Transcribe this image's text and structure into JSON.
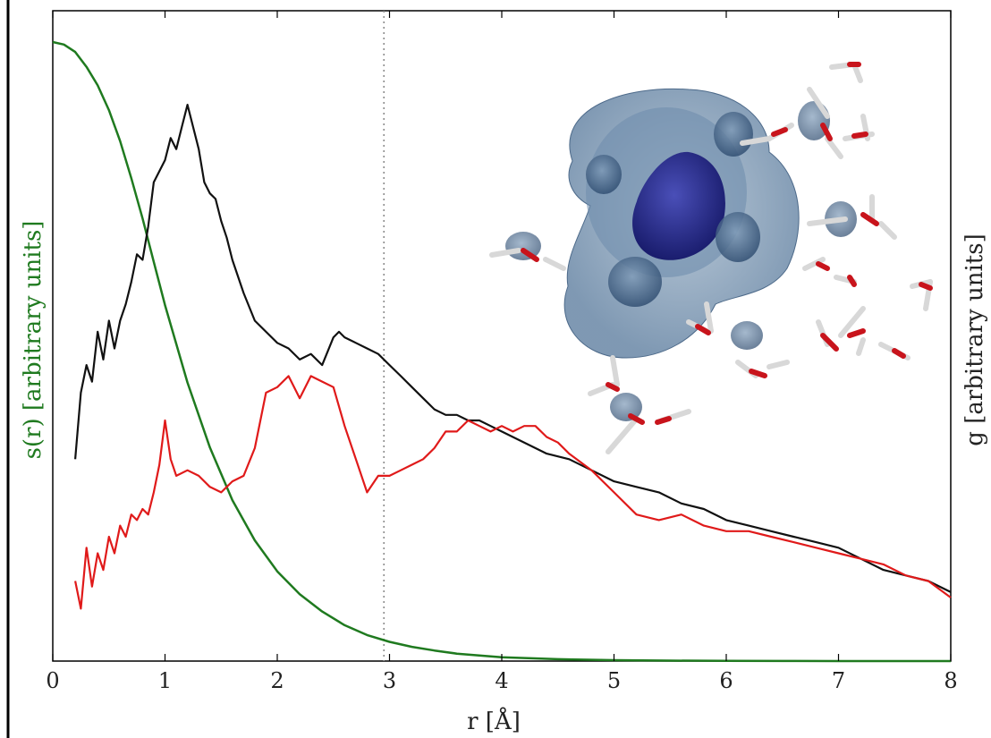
{
  "chart_data": {
    "type": "line",
    "xlabel": "r [Å]",
    "ylabel_left": "s(r) [arbitrary units]",
    "ylabel_right": "g [arbitrary units]",
    "xlim": [
      0,
      8
    ],
    "x_ticks": [
      "0",
      "1",
      "2",
      "3",
      "4",
      "5",
      "6",
      "7",
      "8"
    ],
    "grid": false,
    "vline_x": 2.95,
    "inset": "molecular snapshot of solvated ion surrounded by water molecules with blue isosurfaces",
    "series": [
      {
        "axis": "left",
        "color": "#1f7a1f",
        "x": [
          0,
          0.1,
          0.2,
          0.3,
          0.4,
          0.5,
          0.6,
          0.7,
          0.8,
          0.9,
          1.0,
          1.2,
          1.4,
          1.6,
          1.8,
          2.0,
          2.2,
          2.4,
          2.6,
          2.8,
          3.0,
          3.2,
          3.4,
          3.6,
          3.8,
          4.0,
          4.5,
          5.0,
          5.5,
          6.0,
          6.5,
          7.0,
          7.5,
          8.0
        ],
        "values": [
          1.0,
          0.996,
          0.984,
          0.96,
          0.93,
          0.89,
          0.84,
          0.78,
          0.715,
          0.645,
          0.575,
          0.45,
          0.345,
          0.26,
          0.195,
          0.145,
          0.108,
          0.08,
          0.058,
          0.042,
          0.031,
          0.023,
          0.017,
          0.012,
          0.009,
          0.006,
          0.003,
          0.0015,
          0.0007,
          0.0003,
          0.0001,
          0.0,
          0.0,
          0.0
        ]
      },
      {
        "axis": "right",
        "color": "#111111",
        "x": [
          0.2,
          0.25,
          0.3,
          0.35,
          0.4,
          0.45,
          0.5,
          0.55,
          0.6,
          0.65,
          0.7,
          0.75,
          0.8,
          0.85,
          0.9,
          0.95,
          1.0,
          1.05,
          1.1,
          1.15,
          1.2,
          1.25,
          1.3,
          1.35,
          1.4,
          1.45,
          1.5,
          1.55,
          1.6,
          1.7,
          1.8,
          1.9,
          2.0,
          2.1,
          2.2,
          2.3,
          2.4,
          2.5,
          2.55,
          2.6,
          2.7,
          2.8,
          2.9,
          3.0,
          3.1,
          3.2,
          3.3,
          3.4,
          3.5,
          3.6,
          3.7,
          3.8,
          3.9,
          4.0,
          4.2,
          4.4,
          4.6,
          4.8,
          5.0,
          5.2,
          5.4,
          5.6,
          5.8,
          6.0,
          6.2,
          6.4,
          6.6,
          6.8,
          7.0,
          7.2,
          7.4,
          7.6,
          7.8,
          8.0
        ],
        "values": [
          0.3,
          0.42,
          0.47,
          0.44,
          0.53,
          0.48,
          0.55,
          0.5,
          0.55,
          0.58,
          0.62,
          0.67,
          0.66,
          0.72,
          0.8,
          0.82,
          0.84,
          0.88,
          0.86,
          0.9,
          0.94,
          0.9,
          0.86,
          0.8,
          0.78,
          0.77,
          0.73,
          0.7,
          0.66,
          0.6,
          0.55,
          0.53,
          0.51,
          0.5,
          0.48,
          0.49,
          0.47,
          0.52,
          0.53,
          0.52,
          0.51,
          0.5,
          0.49,
          0.47,
          0.45,
          0.43,
          0.41,
          0.39,
          0.38,
          0.38,
          0.37,
          0.37,
          0.36,
          0.35,
          0.33,
          0.31,
          0.3,
          0.28,
          0.26,
          0.25,
          0.24,
          0.22,
          0.21,
          0.19,
          0.18,
          0.17,
          0.16,
          0.15,
          0.14,
          0.12,
          0.1,
          0.09,
          0.08,
          0.06
        ]
      },
      {
        "axis": "right",
        "color": "#e01a1a",
        "x": [
          0.2,
          0.25,
          0.3,
          0.35,
          0.4,
          0.45,
          0.5,
          0.55,
          0.6,
          0.65,
          0.7,
          0.75,
          0.8,
          0.85,
          0.9,
          0.95,
          1.0,
          1.05,
          1.1,
          1.2,
          1.3,
          1.4,
          1.5,
          1.6,
          1.7,
          1.8,
          1.9,
          2.0,
          2.1,
          2.2,
          2.3,
          2.4,
          2.5,
          2.6,
          2.7,
          2.8,
          2.9,
          3.0,
          3.1,
          3.2,
          3.3,
          3.4,
          3.5,
          3.6,
          3.7,
          3.8,
          3.9,
          4.0,
          4.1,
          4.2,
          4.3,
          4.4,
          4.5,
          4.6,
          4.8,
          5.0,
          5.2,
          5.4,
          5.6,
          5.8,
          6.0,
          6.2,
          6.4,
          6.6,
          6.8,
          7.0,
          7.2,
          7.4,
          7.6,
          7.8,
          8.0
        ],
        "values": [
          0.08,
          0.03,
          0.14,
          0.07,
          0.13,
          0.1,
          0.16,
          0.13,
          0.18,
          0.16,
          0.2,
          0.19,
          0.21,
          0.2,
          0.24,
          0.29,
          0.37,
          0.3,
          0.27,
          0.28,
          0.27,
          0.25,
          0.24,
          0.26,
          0.27,
          0.32,
          0.42,
          0.43,
          0.45,
          0.41,
          0.45,
          0.44,
          0.43,
          0.36,
          0.3,
          0.24,
          0.27,
          0.27,
          0.28,
          0.29,
          0.3,
          0.32,
          0.35,
          0.35,
          0.37,
          0.36,
          0.35,
          0.36,
          0.35,
          0.36,
          0.36,
          0.34,
          0.33,
          0.31,
          0.28,
          0.24,
          0.2,
          0.19,
          0.2,
          0.18,
          0.17,
          0.17,
          0.16,
          0.15,
          0.14,
          0.13,
          0.12,
          0.11,
          0.09,
          0.08,
          0.05
        ]
      }
    ]
  }
}
